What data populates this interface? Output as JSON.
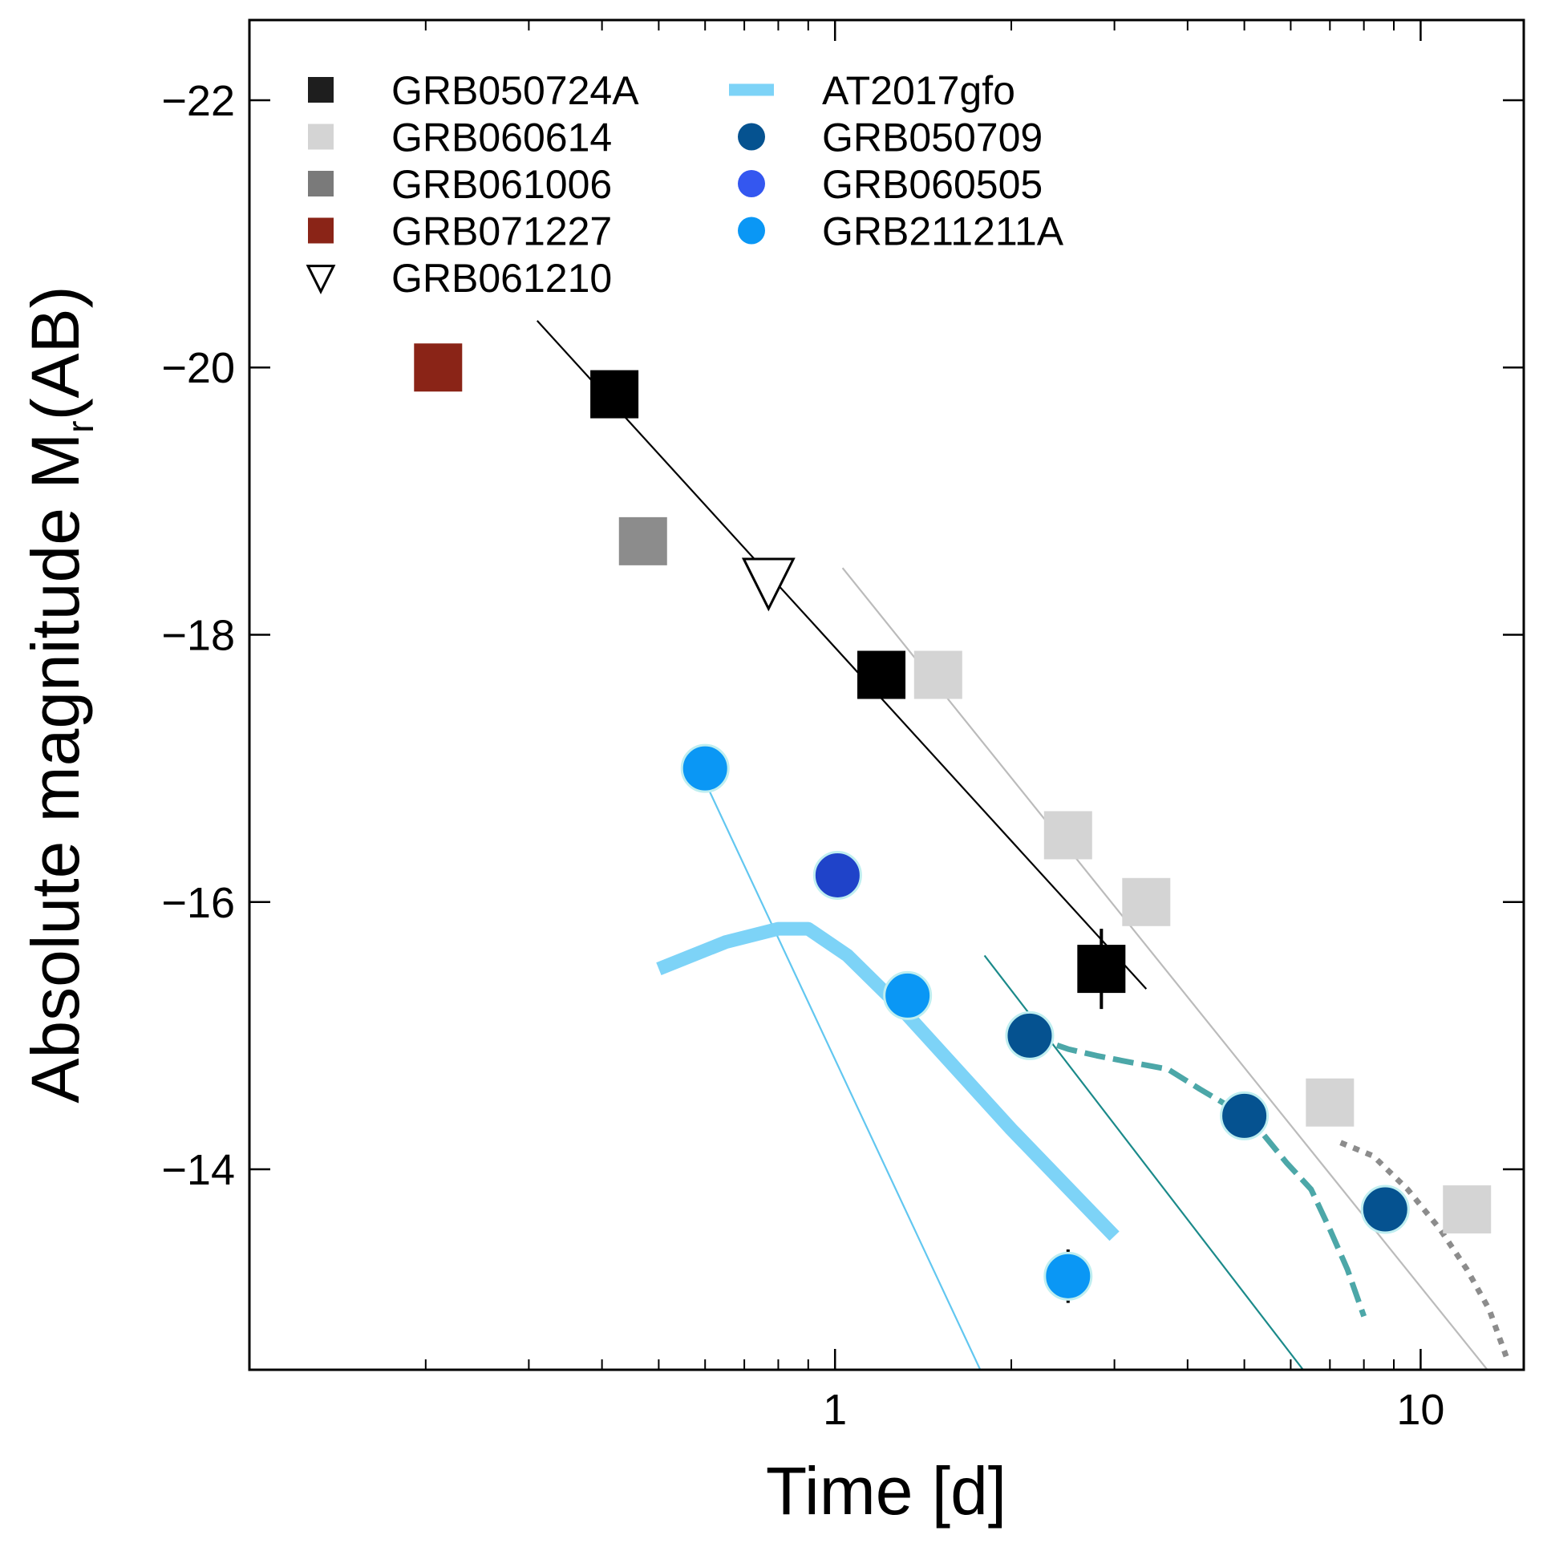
{
  "chart_data": {
    "type": "scatter",
    "xlabel": "Time [d]",
    "ylabel": "Absolute magnitude  M",
    "ylabel_sub": "r",
    "ylabel_tail": "(AB)",
    "x_scale": "log",
    "xlim": [
      0.1,
      15
    ],
    "ylim": [
      -12.5,
      -22.6
    ],
    "x_ticks": [
      {
        "value": 1,
        "label": "1"
      },
      {
        "value": 10,
        "label": "10"
      }
    ],
    "y_ticks": [
      {
        "value": -22,
        "label": "−22"
      },
      {
        "value": -20,
        "label": "−20"
      },
      {
        "value": -18,
        "label": "−18"
      },
      {
        "value": -16,
        "label": "−16"
      },
      {
        "value": -14,
        "label": "−14"
      }
    ],
    "legend": [
      {
        "label": "GRB050724A",
        "marker": "square",
        "color": "#1e1e1e"
      },
      {
        "label": "GRB060614",
        "marker": "square",
        "color": "#d4d4d4"
      },
      {
        "label": "GRB061006",
        "marker": "square",
        "color": "#7a7a7a"
      },
      {
        "label": "GRB071227",
        "marker": "square",
        "color": "#8a2417"
      },
      {
        "label": "GRB061210",
        "marker": "triangle-down",
        "color": "#000000"
      },
      {
        "label": "AT2017gfo",
        "marker": "line",
        "color": "#7dd3f7"
      },
      {
        "label": "GRB050709",
        "marker": "circle",
        "color": "#055290"
      },
      {
        "label": "GRB060505",
        "marker": "circle",
        "color": "#3457f0"
      },
      {
        "label": "GRB211211A",
        "marker": "circle",
        "color": "#0a97f5"
      }
    ],
    "series": [
      {
        "name": "GRB050724A",
        "marker": "square",
        "color": "#000000",
        "x": [
          0.42,
          1.2,
          2.85
        ],
        "y": [
          -19.8,
          -17.7,
          -15.5
        ],
        "yerr": [
          0,
          0,
          0.3
        ]
      },
      {
        "name": "GRB060614",
        "marker": "square",
        "color": "#d4d4d4",
        "x": [
          1.5,
          2.5,
          3.4,
          7,
          12
        ],
        "y": [
          -17.7,
          -16.5,
          -16.0,
          -14.5,
          -13.7
        ],
        "yerr": [
          0,
          0,
          0,
          0,
          0
        ]
      },
      {
        "name": "GRB061006",
        "marker": "square",
        "color": "#8c8c8c",
        "x": [
          0.47
        ],
        "y": [
          -18.7
        ],
        "yerr": [
          0
        ]
      },
      {
        "name": "GRB071227",
        "marker": "square",
        "color": "#8a2417",
        "x": [
          0.21
        ],
        "y": [
          -20.0
        ],
        "yerr": [
          0
        ]
      },
      {
        "name": "GRB061210",
        "marker": "triangle-down",
        "color": "#000000",
        "x": [
          0.77
        ],
        "y": [
          -18.4
        ],
        "yerr": [
          0
        ]
      },
      {
        "name": "GRB050709",
        "marker": "circle",
        "color": "#055290",
        "x": [
          2.15,
          5.0,
          8.7
        ],
        "y": [
          -15.0,
          -14.4,
          -13.7
        ],
        "yerr": [
          0.15,
          0,
          0
        ]
      },
      {
        "name": "GRB060505",
        "marker": "circle",
        "color": "#1f43c9",
        "x": [
          1.01
        ],
        "y": [
          -16.2
        ],
        "yerr": [
          0
        ]
      },
      {
        "name": "GRB211211A",
        "marker": "circle",
        "color": "#0a97f5",
        "x": [
          0.6,
          1.33,
          2.5
        ],
        "y": [
          -17.0,
          -15.3,
          -13.2
        ],
        "yerr": [
          0,
          0,
          0.2
        ]
      }
    ],
    "curves": [
      {
        "name": "GRB050724A fit",
        "style": "thin",
        "color": "#000000",
        "x": [
          0.31,
          3.4
        ],
        "y": [
          -20.35,
          -15.35
        ]
      },
      {
        "name": "GRB060614 fit",
        "style": "thin",
        "color": "#bbbbbb",
        "x": [
          1.03,
          13
        ],
        "y": [
          -18.5,
          -12.5
        ]
      },
      {
        "name": "GRB211211A fit",
        "style": "thin",
        "color": "#62c7f0",
        "x": [
          0.6,
          1.77
        ],
        "y": [
          -16.9,
          -12.5
        ]
      },
      {
        "name": "GRB050709 fit",
        "style": "thin",
        "color": "#1b8a8a",
        "x": [
          1.8,
          6.3
        ],
        "y": [
          -15.6,
          -12.5
        ]
      },
      {
        "name": "AT2017gfo",
        "style": "thick",
        "color": "#7dd3f7",
        "x": [
          0.5,
          0.65,
          0.8,
          0.9,
          1.05,
          1.3,
          2.0,
          3.0
        ],
        "y": [
          -15.5,
          -15.7,
          -15.8,
          -15.8,
          -15.6,
          -15.2,
          -14.3,
          -13.5
        ]
      },
      {
        "name": "GRB050709 model",
        "style": "dashed",
        "color": "#4ca7a8",
        "x": [
          2.15,
          2.5,
          2.8,
          3.2,
          3.7,
          4.2,
          4.8,
          5.3,
          5.9,
          6.5,
          7.0,
          7.5,
          8.0
        ],
        "y": [
          -15.0,
          -14.9,
          -14.85,
          -14.8,
          -14.75,
          -14.6,
          -14.45,
          -14.3,
          -14.05,
          -13.85,
          -13.55,
          -13.25,
          -12.9
        ]
      },
      {
        "name": "GRB060614 model",
        "style": "dotted",
        "color": "#8c8c8c",
        "x": [
          7.3,
          8.3,
          9.5,
          10.8,
          12.0,
          13.1,
          14.0
        ],
        "y": [
          -14.2,
          -14.1,
          -13.85,
          -13.55,
          -13.25,
          -12.95,
          -12.6
        ]
      }
    ]
  }
}
